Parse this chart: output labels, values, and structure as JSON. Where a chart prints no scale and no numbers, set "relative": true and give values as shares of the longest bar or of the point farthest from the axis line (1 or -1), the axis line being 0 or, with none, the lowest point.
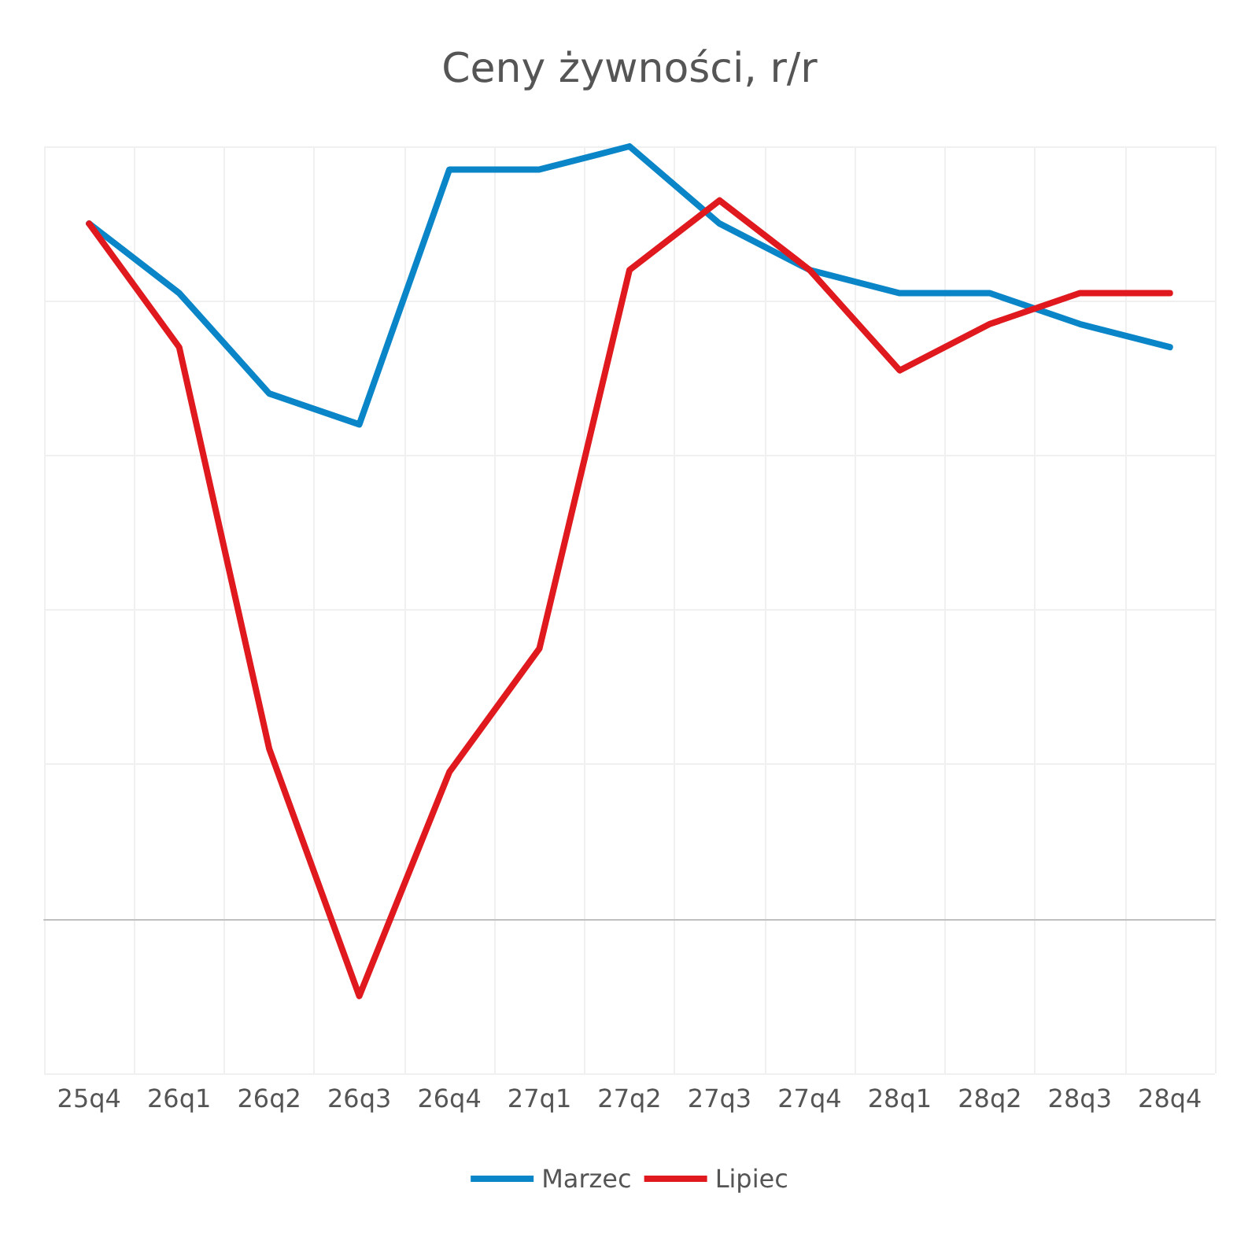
{
  "chart_data": {
    "type": "line",
    "title": "Ceny żywności, r/r",
    "relative": true,
    "categories": [
      "25q4",
      "26q1",
      "26q2",
      "26q3",
      "26q4",
      "27q1",
      "27q2",
      "27q3",
      "27q4",
      "28q1",
      "28q2",
      "28q3",
      "28q4"
    ],
    "series": [
      {
        "name": "Marzec",
        "color": "#0a86c8",
        "values": [
          0.9,
          0.81,
          0.68,
          0.64,
          0.97,
          0.97,
          1,
          0.9,
          0.84,
          0.81,
          0.81,
          0.77,
          0.74
        ]
      },
      {
        "name": "Lipiec",
        "color": "#e0191e",
        "values": [
          0.9,
          0.74,
          0.22,
          -0.1,
          0.19,
          0.35,
          0.84,
          0.93,
          0.84,
          0.71,
          0.77,
          0.81,
          0.81
        ]
      }
    ],
    "grid": true,
    "legend": "bottom",
    "marker": "none",
    "line_style": "solid"
  }
}
